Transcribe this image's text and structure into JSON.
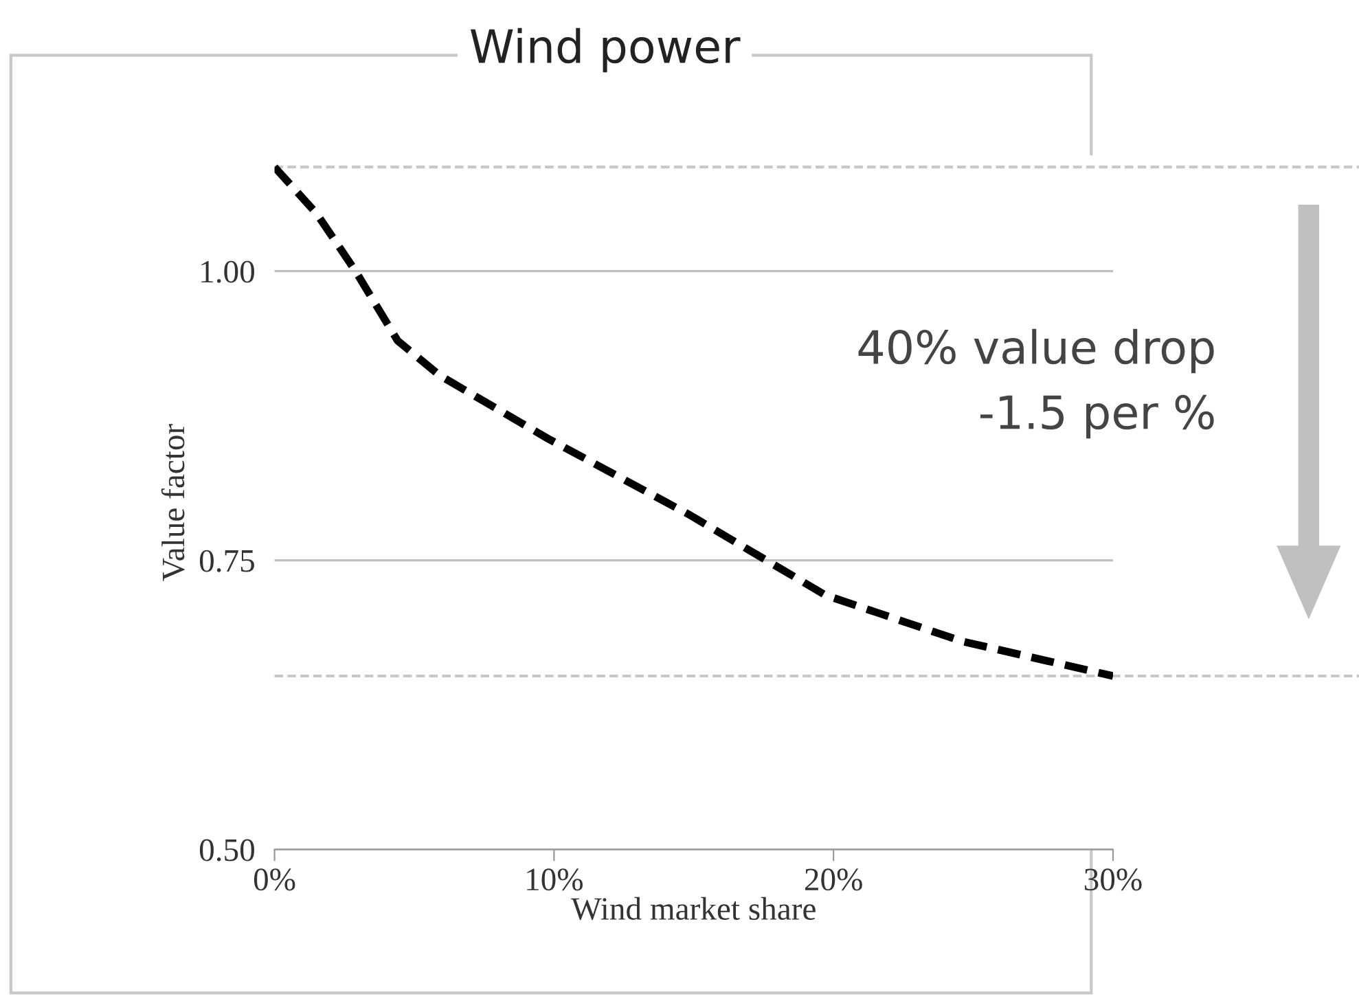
{
  "chart_data": {
    "type": "line",
    "title": "Wind power",
    "xlabel": "Wind market share",
    "ylabel": "Value factor",
    "x": [
      0,
      1.5,
      2.9,
      4.4,
      5.9,
      9.8,
      14.8,
      19.7,
      24.6,
      30
    ],
    "series": [
      {
        "color": "#000000",
        "values": [
          1.09,
          1.05,
          1.0,
          0.94,
          0.91,
          0.855,
          0.79,
          0.72,
          0.68,
          0.65
        ]
      }
    ],
    "line_style": "dashed",
    "marker": "none",
    "xlim": [
      0,
      30
    ],
    "xticks": [
      {
        "value": 0,
        "label": "0%"
      },
      {
        "value": 10,
        "label": "10%"
      },
      {
        "value": 20,
        "label": "20%"
      },
      {
        "value": 30,
        "label": "30%"
      }
    ],
    "ylim": [
      0.5,
      1.1
    ],
    "yticks": [
      {
        "value": 0.5,
        "label": "0.50"
      },
      {
        "value": 0.75,
        "label": "0.75"
      },
      {
        "value": 1.0,
        "label": "1.00"
      }
    ],
    "grid": "y",
    "ref_lines": [
      {
        "axis": "y",
        "value": 1.09,
        "color": "#c8c8c8",
        "line_style": "dashed"
      },
      {
        "axis": "y",
        "value": 0.65,
        "color": "#c8c8c8",
        "line_style": "dashed"
      }
    ],
    "annotations": [
      "40% value drop",
      "-1.5 per %"
    ]
  }
}
